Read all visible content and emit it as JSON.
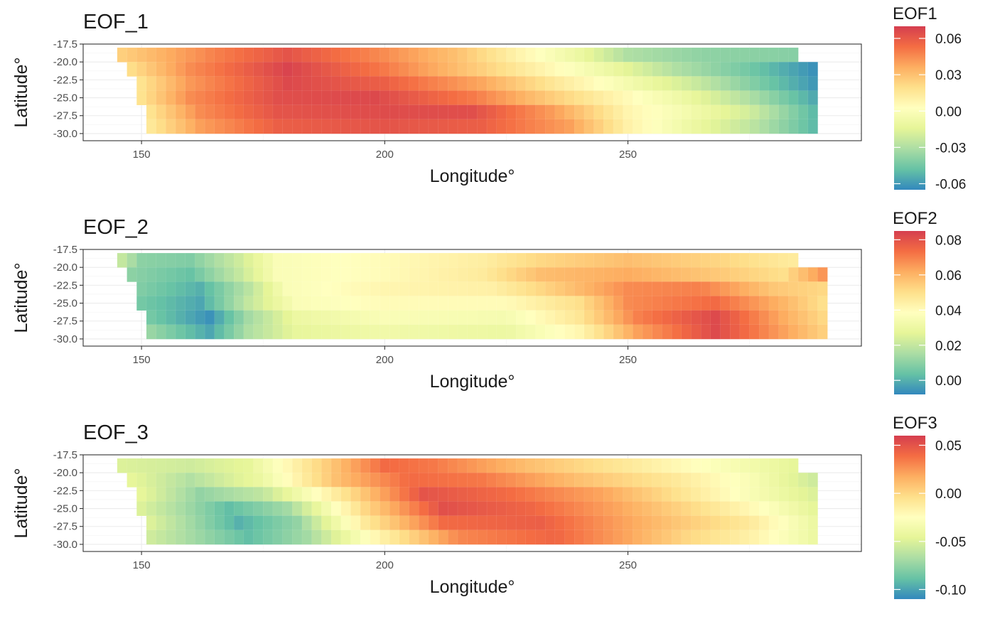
{
  "palette": [
    "#3288BD",
    "#66C2A5",
    "#ABDDA4",
    "#E6F598",
    "#FFFFBF",
    "#FEE08B",
    "#FDAE61",
    "#F46D43",
    "#D53E4F"
  ],
  "chart_data": [
    {
      "type": "heatmap",
      "title": "EOF_1",
      "xlabel": "Longitude°",
      "ylabel": "Latitude°",
      "x_ticks": [
        150,
        200,
        250
      ],
      "y_ticks": [
        "-17.5",
        "-20.0",
        "-22.5",
        "-25.0",
        "-27.5",
        "-30.0"
      ],
      "xlim": [
        138,
        298
      ],
      "ylim": [
        -31.0,
        -17.5
      ],
      "grid": true,
      "legend": {
        "title": "EOF1",
        "position": "right",
        "labels": [
          "0.06",
          "0.03",
          "0.00",
          "-0.03",
          "-0.06"
        ],
        "values": [
          0.06,
          0.03,
          0.0,
          -0.03,
          -0.06
        ],
        "range": [
          -0.065,
          0.07
        ]
      },
      "grid_x": {
        "lon_start": 146,
        "lon_step": 2
      },
      "latitudes": [
        -19,
        -21,
        -23,
        -25,
        -27,
        -29
      ],
      "rows": [
        {
          "lat": -19,
          "lon_start": 146,
          "lon_end": 284,
          "anchors": [
            [
              146,
              0.025
            ],
            [
              165,
              0.048
            ],
            [
              180,
              0.062
            ],
            [
              200,
              0.045
            ],
            [
              215,
              0.03
            ],
            [
              228,
              0.008
            ],
            [
              240,
              -0.01
            ],
            [
              250,
              -0.03
            ],
            [
              265,
              -0.038
            ],
            [
              284,
              -0.04
            ]
          ]
        },
        {
          "lat": -21,
          "lon_start": 148,
          "lon_end": 288,
          "anchors": [
            [
              148,
              0.02
            ],
            [
              160,
              0.045
            ],
            [
              180,
              0.068
            ],
            [
              200,
              0.05
            ],
            [
              220,
              0.025
            ],
            [
              235,
              0.005
            ],
            [
              248,
              -0.012
            ],
            [
              260,
              -0.03
            ],
            [
              275,
              -0.045
            ],
            [
              288,
              -0.062
            ]
          ]
        },
        {
          "lat": -23,
          "lon_start": 150,
          "lon_end": 288,
          "anchors": [
            [
              150,
              0.018
            ],
            [
              160,
              0.042
            ],
            [
              180,
              0.066
            ],
            [
              200,
              0.058
            ],
            [
              220,
              0.038
            ],
            [
              235,
              0.015
            ],
            [
              250,
              -0.005
            ],
            [
              262,
              -0.02
            ],
            [
              275,
              -0.04
            ],
            [
              288,
              -0.06
            ]
          ]
        },
        {
          "lat": -25,
          "lon_start": 150,
          "lon_end": 288,
          "anchors": [
            [
              150,
              0.018
            ],
            [
              160,
              0.045
            ],
            [
              178,
              0.064
            ],
            [
              198,
              0.066
            ],
            [
              218,
              0.05
            ],
            [
              235,
              0.025
            ],
            [
              250,
              0.005
            ],
            [
              262,
              -0.01
            ],
            [
              275,
              -0.03
            ],
            [
              288,
              -0.055
            ]
          ]
        },
        {
          "lat": -27,
          "lon_start": 152,
          "lon_end": 288,
          "anchors": [
            [
              152,
              0.018
            ],
            [
              162,
              0.045
            ],
            [
              178,
              0.062
            ],
            [
              200,
              0.065
            ],
            [
              218,
              0.064
            ],
            [
              235,
              0.04
            ],
            [
              250,
              0.008
            ],
            [
              262,
              -0.005
            ],
            [
              275,
              -0.02
            ],
            [
              288,
              -0.05
            ]
          ]
        },
        {
          "lat": -29,
          "lon_start": 152,
          "lon_end": 288,
          "anchors": [
            [
              152,
              0.015
            ],
            [
              162,
              0.04
            ],
            [
              178,
              0.058
            ],
            [
              200,
              0.062
            ],
            [
              220,
              0.058
            ],
            [
              238,
              0.04
            ],
            [
              250,
              0.01
            ],
            [
              262,
              -0.008
            ],
            [
              275,
              -0.025
            ],
            [
              288,
              -0.05
            ]
          ]
        }
      ]
    },
    {
      "type": "heatmap",
      "title": "EOF_2",
      "xlabel": "Longitude°",
      "ylabel": "Latitude°",
      "x_ticks": [
        150,
        200,
        250
      ],
      "y_ticks": [
        "-17.5",
        "-20.0",
        "-22.5",
        "-25.0",
        "-27.5",
        "-30.0"
      ],
      "xlim": [
        138,
        298
      ],
      "ylim": [
        -31.0,
        -17.5
      ],
      "grid": true,
      "legend": {
        "title": "EOF2",
        "position": "right",
        "labels": [
          "0.08",
          "0.06",
          "0.04",
          "0.02",
          "0.00"
        ],
        "values": [
          0.08,
          0.06,
          0.04,
          0.02,
          0.0
        ],
        "range": [
          -0.008,
          0.085
        ]
      },
      "grid_x": {
        "lon_start": 146,
        "lon_step": 2
      },
      "latitudes": [
        -19,
        -21,
        -23,
        -25,
        -27,
        -29
      ],
      "rows": [
        {
          "lat": -19,
          "lon_start": 146,
          "lon_end": 284,
          "anchors": [
            [
              146,
              0.02
            ],
            [
              150,
              0.01
            ],
            [
              160,
              0.008
            ],
            [
              170,
              0.022
            ],
            [
              178,
              0.036
            ],
            [
              200,
              0.04
            ],
            [
              220,
              0.045
            ],
            [
              232,
              0.052
            ],
            [
              250,
              0.058
            ],
            [
              270,
              0.052
            ],
            [
              284,
              0.046
            ]
          ]
        },
        {
          "lat": -21,
          "lon_start": 148,
          "lon_end": 290,
          "anchors": [
            [
              148,
              0.01
            ],
            [
              160,
              0.004
            ],
            [
              170,
              0.02
            ],
            [
              178,
              0.036
            ],
            [
              200,
              0.04
            ],
            [
              220,
              0.046
            ],
            [
              232,
              0.058
            ],
            [
              250,
              0.062
            ],
            [
              270,
              0.055
            ],
            [
              282,
              0.05
            ],
            [
              290,
              0.066
            ]
          ]
        },
        {
          "lat": -23,
          "lon_start": 150,
          "lon_end": 290,
          "anchors": [
            [
              150,
              0.008
            ],
            [
              162,
              0.0
            ],
            [
              172,
              0.018
            ],
            [
              180,
              0.036
            ],
            [
              200,
              0.042
            ],
            [
              222,
              0.044
            ],
            [
              232,
              0.052
            ],
            [
              250,
              0.068
            ],
            [
              265,
              0.07
            ],
            [
              280,
              0.056
            ],
            [
              290,
              0.052
            ]
          ]
        },
        {
          "lat": -25,
          "lon_start": 150,
          "lon_end": 290,
          "anchors": [
            [
              150,
              0.006
            ],
            [
              162,
              -0.002
            ],
            [
              172,
              0.02
            ],
            [
              182,
              0.036
            ],
            [
              200,
              0.04
            ],
            [
              225,
              0.04
            ],
            [
              240,
              0.05
            ],
            [
              250,
              0.068
            ],
            [
              268,
              0.074
            ],
            [
              282,
              0.06
            ],
            [
              290,
              0.05
            ]
          ]
        },
        {
          "lat": -27,
          "lon_start": 152,
          "lon_end": 290,
          "anchors": [
            [
              152,
              0.006
            ],
            [
              164,
              -0.006
            ],
            [
              172,
              0.014
            ],
            [
              182,
              0.03
            ],
            [
              200,
              0.036
            ],
            [
              225,
              0.034
            ],
            [
              240,
              0.048
            ],
            [
              252,
              0.07
            ],
            [
              268,
              0.082
            ],
            [
              282,
              0.062
            ],
            [
              290,
              0.052
            ]
          ]
        },
        {
          "lat": -29,
          "lon_start": 152,
          "lon_end": 290,
          "anchors": [
            [
              152,
              0.012
            ],
            [
              164,
              -0.002
            ],
            [
              172,
              0.016
            ],
            [
              182,
              0.028
            ],
            [
              200,
              0.032
            ],
            [
              225,
              0.03
            ],
            [
              240,
              0.042
            ],
            [
              252,
              0.064
            ],
            [
              268,
              0.082
            ],
            [
              282,
              0.064
            ],
            [
              290,
              0.054
            ]
          ]
        }
      ]
    },
    {
      "type": "heatmap",
      "title": "EOF_3",
      "xlabel": "Longitude°",
      "ylabel": "Latitude°",
      "x_ticks": [
        150,
        200,
        250
      ],
      "y_ticks": [
        "-17.5",
        "-20.0",
        "-22.5",
        "-25.0",
        "-27.5",
        "-30.0"
      ],
      "xlim": [
        138,
        298
      ],
      "ylim": [
        -31.0,
        -17.5
      ],
      "grid": true,
      "legend": {
        "title": "EOF3",
        "position": "right",
        "labels": [
          "0.05",
          "0.00",
          "-0.05",
          "-0.10"
        ],
        "values": [
          0.05,
          0.0,
          -0.05,
          -0.1
        ],
        "range": [
          -0.11,
          0.06
        ]
      },
      "grid_x": {
        "lon_start": 146,
        "lon_step": 2
      },
      "latitudes": [
        -19,
        -21,
        -23,
        -25,
        -27,
        -29
      ],
      "rows": [
        {
          "lat": -19,
          "lon_start": 146,
          "lon_end": 284,
          "anchors": [
            [
              146,
              -0.05
            ],
            [
              160,
              -0.055
            ],
            [
              172,
              -0.045
            ],
            [
              185,
              -0.005
            ],
            [
              200,
              0.04
            ],
            [
              210,
              0.035
            ],
            [
              230,
              0.01
            ],
            [
              250,
              -0.01
            ],
            [
              270,
              -0.03
            ],
            [
              284,
              -0.045
            ]
          ]
        },
        {
          "lat": -21,
          "lon_start": 148,
          "lon_end": 288,
          "anchors": [
            [
              148,
              -0.045
            ],
            [
              160,
              -0.065
            ],
            [
              175,
              -0.04
            ],
            [
              190,
              0.01
            ],
            [
              205,
              0.04
            ],
            [
              220,
              0.035
            ],
            [
              240,
              0.01
            ],
            [
              260,
              -0.01
            ],
            [
              275,
              -0.03
            ],
            [
              288,
              -0.055
            ]
          ]
        },
        {
          "lat": -23,
          "lon_start": 150,
          "lon_end": 288,
          "anchors": [
            [
              150,
              -0.045
            ],
            [
              162,
              -0.075
            ],
            [
              175,
              -0.06
            ],
            [
              192,
              -0.005
            ],
            [
              208,
              0.05
            ],
            [
              225,
              0.04
            ],
            [
              245,
              0.02
            ],
            [
              260,
              -0.005
            ],
            [
              275,
              -0.03
            ],
            [
              288,
              -0.05
            ]
          ]
        },
        {
          "lat": -25,
          "lon_start": 150,
          "lon_end": 288,
          "anchors": [
            [
              150,
              -0.05
            ],
            [
              168,
              -0.09
            ],
            [
              180,
              -0.07
            ],
            [
              196,
              0.0
            ],
            [
              212,
              0.052
            ],
            [
              230,
              0.042
            ],
            [
              248,
              0.02
            ],
            [
              262,
              0.0
            ],
            [
              275,
              -0.02
            ],
            [
              288,
              -0.045
            ]
          ]
        },
        {
          "lat": -27,
          "lon_start": 152,
          "lon_end": 288,
          "anchors": [
            [
              152,
              -0.05
            ],
            [
              170,
              -0.095
            ],
            [
              182,
              -0.075
            ],
            [
              196,
              -0.01
            ],
            [
              212,
              0.04
            ],
            [
              232,
              0.045
            ],
            [
              250,
              0.02
            ],
            [
              262,
              0.005
            ],
            [
              275,
              -0.01
            ],
            [
              288,
              -0.04
            ]
          ]
        },
        {
          "lat": -29,
          "lon_start": 152,
          "lon_end": 288,
          "anchors": [
            [
              152,
              -0.055
            ],
            [
              172,
              -0.09
            ],
            [
              184,
              -0.07
            ],
            [
              198,
              -0.02
            ],
            [
              215,
              0.03
            ],
            [
              235,
              0.042
            ],
            [
              250,
              0.02
            ],
            [
              262,
              0.0
            ],
            [
              275,
              -0.015
            ],
            [
              288,
              -0.04
            ]
          ]
        }
      ]
    }
  ]
}
